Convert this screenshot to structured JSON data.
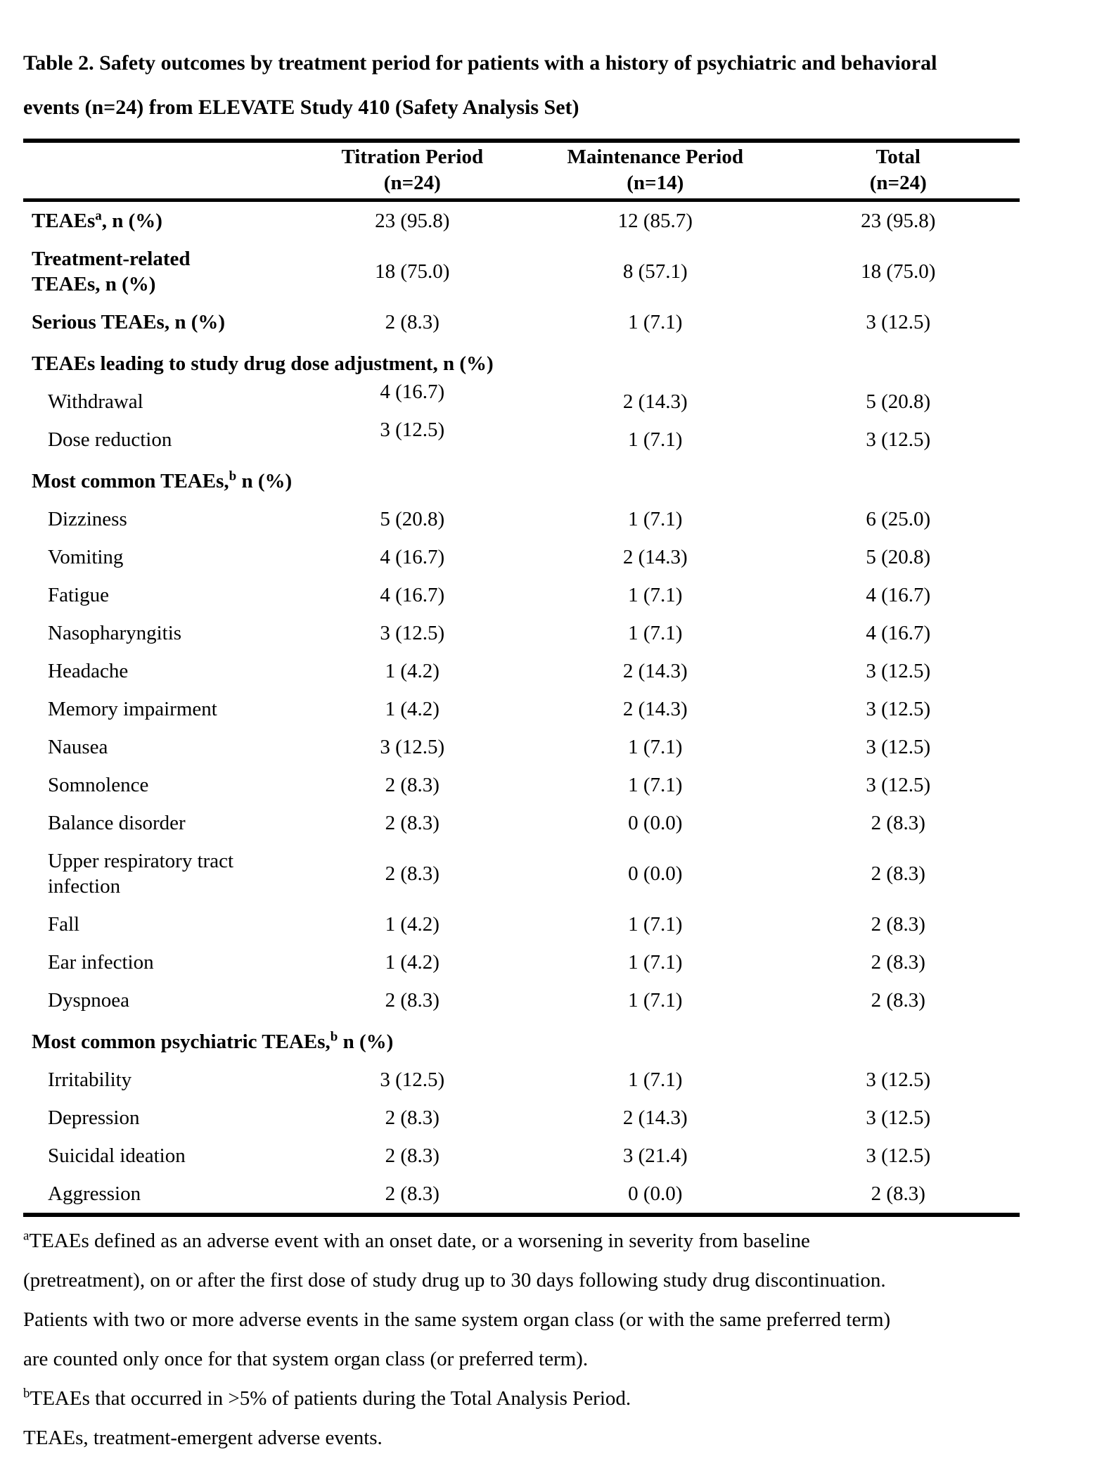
{
  "colors": {
    "text": "#000000",
    "background": "#ffffff",
    "rule": "#000000"
  },
  "title": {
    "lines": [
      "Table 2. Safety outcomes by treatment period for patients with a history of psychiatric and behavioral",
      "events (n=24) from ELEVATE Study 410 (Safety Analysis Set)"
    ]
  },
  "table": {
    "columns": [
      {
        "line1": "Titration Period",
        "line2": "(n=24)"
      },
      {
        "line1": "Maintenance Period",
        "line2": "(n=14)"
      },
      {
        "line1": "Total",
        "line2": "(n=24)"
      }
    ],
    "rows": [
      {
        "kind": "data",
        "bold": true,
        "indent": false,
        "pre": "TEAEs",
        "sup": "a",
        "post": ", n (%)",
        "line2": "",
        "values": [
          "23 (95.8)",
          "12 (85.7)",
          "23 (95.8)"
        ],
        "raised": false
      },
      {
        "kind": "data",
        "bold": true,
        "indent": false,
        "pre": "Treatment-related",
        "sup": "",
        "post": "",
        "line2": "TEAEs, n (%)",
        "values": [
          "18 (75.0)",
          "8 (57.1)",
          "18 (75.0)"
        ],
        "raised": false
      },
      {
        "kind": "data",
        "bold": true,
        "indent": false,
        "pre": "Serious TEAEs, n (%)",
        "sup": "",
        "post": "",
        "line2": "",
        "values": [
          "2 (8.3)",
          "1 (7.1)",
          "3 (12.5)"
        ],
        "raised": false
      },
      {
        "kind": "section",
        "pre": "TEAEs leading to study drug dose adjustment, n (%)",
        "sup": "",
        "post": ""
      },
      {
        "kind": "data",
        "bold": false,
        "indent": true,
        "pre": "Withdrawal",
        "sup": "",
        "post": "",
        "line2": "",
        "values": [
          "4 (16.7)",
          "2 (14.3)",
          "5 (20.8)"
        ],
        "raised": true
      },
      {
        "kind": "data",
        "bold": false,
        "indent": true,
        "pre": "Dose reduction",
        "sup": "",
        "post": "",
        "line2": "",
        "values": [
          "3 (12.5)",
          "1 (7.1)",
          "3 (12.5)"
        ],
        "raised": true
      },
      {
        "kind": "section",
        "pre": "Most common TEAEs,",
        "sup": "b",
        "post": " n (%)"
      },
      {
        "kind": "data",
        "bold": false,
        "indent": true,
        "pre": "Dizziness",
        "sup": "",
        "post": "",
        "line2": "",
        "values": [
          "5 (20.8)",
          "1 (7.1)",
          "6 (25.0)"
        ],
        "raised": false
      },
      {
        "kind": "data",
        "bold": false,
        "indent": true,
        "pre": "Vomiting",
        "sup": "",
        "post": "",
        "line2": "",
        "values": [
          "4 (16.7)",
          "2 (14.3)",
          "5 (20.8)"
        ],
        "raised": false
      },
      {
        "kind": "data",
        "bold": false,
        "indent": true,
        "pre": "Fatigue",
        "sup": "",
        "post": "",
        "line2": "",
        "values": [
          "4 (16.7)",
          "1 (7.1)",
          "4 (16.7)"
        ],
        "raised": false
      },
      {
        "kind": "data",
        "bold": false,
        "indent": true,
        "pre": "Nasopharyngitis",
        "sup": "",
        "post": "",
        "line2": "",
        "values": [
          "3 (12.5)",
          "1 (7.1)",
          "4 (16.7)"
        ],
        "raised": false
      },
      {
        "kind": "data",
        "bold": false,
        "indent": true,
        "pre": "Headache",
        "sup": "",
        "post": "",
        "line2": "",
        "values": [
          "1 (4.2)",
          "2 (14.3)",
          "3 (12.5)"
        ],
        "raised": false
      },
      {
        "kind": "data",
        "bold": false,
        "indent": true,
        "pre": "Memory impairment",
        "sup": "",
        "post": "",
        "line2": "",
        "values": [
          "1 (4.2)",
          "2 (14.3)",
          "3 (12.5)"
        ],
        "raised": false
      },
      {
        "kind": "data",
        "bold": false,
        "indent": true,
        "pre": "Nausea",
        "sup": "",
        "post": "",
        "line2": "",
        "values": [
          "3 (12.5)",
          "1 (7.1)",
          "3 (12.5)"
        ],
        "raised": false
      },
      {
        "kind": "data",
        "bold": false,
        "indent": true,
        "pre": "Somnolence",
        "sup": "",
        "post": "",
        "line2": "",
        "values": [
          "2 (8.3)",
          "1 (7.1)",
          "3 (12.5)"
        ],
        "raised": false
      },
      {
        "kind": "data",
        "bold": false,
        "indent": true,
        "pre": "Balance disorder",
        "sup": "",
        "post": "",
        "line2": "",
        "values": [
          "2 (8.3)",
          "0 (0.0)",
          "2 (8.3)"
        ],
        "raised": false
      },
      {
        "kind": "data",
        "bold": false,
        "indent": true,
        "pre": "Upper respiratory tract",
        "sup": "",
        "post": "",
        "line2": "infection",
        "values": [
          "2 (8.3)",
          "0 (0.0)",
          "2 (8.3)"
        ],
        "raised": false
      },
      {
        "kind": "data",
        "bold": false,
        "indent": true,
        "pre": "Fall",
        "sup": "",
        "post": "",
        "line2": "",
        "values": [
          "1 (4.2)",
          "1 (7.1)",
          "2 (8.3)"
        ],
        "raised": false
      },
      {
        "kind": "data",
        "bold": false,
        "indent": true,
        "pre": "Ear infection",
        "sup": "",
        "post": "",
        "line2": "",
        "values": [
          "1 (4.2)",
          "1 (7.1)",
          "2 (8.3)"
        ],
        "raised": false
      },
      {
        "kind": "data",
        "bold": false,
        "indent": true,
        "pre": "Dyspnoea",
        "sup": "",
        "post": "",
        "line2": "",
        "values": [
          "2 (8.3)",
          "1 (7.1)",
          "2 (8.3)"
        ],
        "raised": false
      },
      {
        "kind": "section",
        "pre": "Most common psychiatric TEAEs,",
        "sup": "b",
        "post": " n (%)"
      },
      {
        "kind": "data",
        "bold": false,
        "indent": true,
        "pre": "Irritability",
        "sup": "",
        "post": "",
        "line2": "",
        "values": [
          "3 (12.5)",
          "1 (7.1)",
          "3 (12.5)"
        ],
        "raised": false
      },
      {
        "kind": "data",
        "bold": false,
        "indent": true,
        "pre": "Depression",
        "sup": "",
        "post": "",
        "line2": "",
        "values": [
          "2 (8.3)",
          "2 (14.3)",
          "3 (12.5)"
        ],
        "raised": false
      },
      {
        "kind": "data",
        "bold": false,
        "indent": true,
        "pre": "Suicidal ideation",
        "sup": "",
        "post": "",
        "line2": "",
        "values": [
          "2 (8.3)",
          "3 (21.4)",
          "3 (12.5)"
        ],
        "raised": false
      },
      {
        "kind": "data",
        "bold": false,
        "indent": true,
        "pre": "Aggression",
        "sup": "",
        "post": "",
        "line2": "",
        "values": [
          "2 (8.3)",
          "0 (0.0)",
          "2 (8.3)"
        ],
        "raised": false
      }
    ]
  },
  "footnotes": [
    {
      "sup": "a",
      "lines": [
        "TEAEs defined as an adverse event with an onset date, or a worsening in severity from baseline",
        "(pretreatment), on or after the first dose of study drug up to 30 days following study drug discontinuation.",
        "Patients with two or more adverse events in the same system organ class (or with the same preferred term)",
        "are counted only once for that system organ class (or preferred term)."
      ]
    },
    {
      "sup": "b",
      "lines": [
        "TEAEs that occurred in >5% of patients during the Total Analysis Period."
      ]
    },
    {
      "sup": "",
      "lines": [
        "TEAEs, treatment-emergent adverse events."
      ]
    }
  ]
}
